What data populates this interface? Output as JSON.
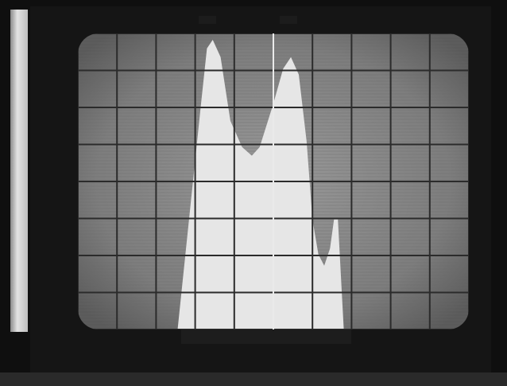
{
  "scene": {
    "subject": "oscilloscope-crt-screen",
    "grid": {
      "columns": 10,
      "rows": 8,
      "visible": true
    },
    "colors": {
      "bezel": "#0e0e0e",
      "left_panel": "#d9d9d9",
      "screen_glass": "#8a8a8a",
      "grid_lines": "#2b2b2b",
      "trace_fill": "#e6e6e6",
      "cursor_line": "#ffffff"
    },
    "trace": {
      "description_points_fraction": [
        [
          0.255,
          1.0
        ],
        [
          0.315,
          0.22
        ],
        [
          0.33,
          0.03
        ],
        [
          0.345,
          0.0
        ],
        [
          0.365,
          0.06
        ],
        [
          0.39,
          0.28
        ],
        [
          0.42,
          0.37
        ],
        [
          0.445,
          0.4
        ],
        [
          0.465,
          0.37
        ],
        [
          0.5,
          0.22
        ],
        [
          0.525,
          0.1
        ],
        [
          0.545,
          0.06
        ],
        [
          0.565,
          0.12
        ],
        [
          0.585,
          0.35
        ],
        [
          0.6,
          0.62
        ],
        [
          0.615,
          0.74
        ],
        [
          0.63,
          0.78
        ],
        [
          0.645,
          0.72
        ],
        [
          0.655,
          0.62
        ],
        [
          0.665,
          0.62
        ],
        [
          0.68,
          1.0
        ]
      ],
      "cursor_x_fraction": 0.5
    }
  }
}
